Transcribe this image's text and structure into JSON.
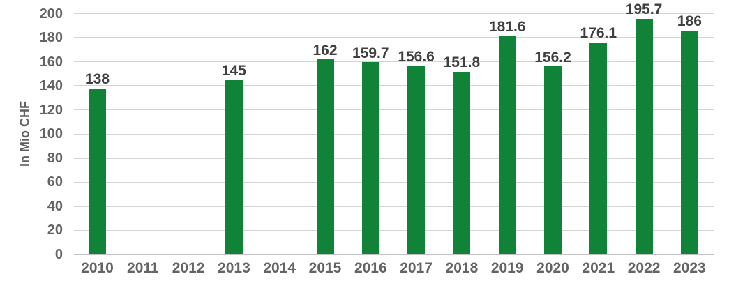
{
  "colors": {
    "bar": "#108338",
    "gridline": "#d4d4d4",
    "axis_line": "#c2c2c2",
    "tick_text": "#646464",
    "data_label_text": "#3f3f3f",
    "background": "#ffffff"
  },
  "chart_data": {
    "type": "bar",
    "title": "",
    "xlabel": "",
    "ylabel": "In Mio CHF",
    "categories": [
      "2010",
      "2011",
      "2012",
      "2013",
      "2014",
      "2015",
      "2016",
      "2017",
      "2018",
      "2019",
      "2020",
      "2021",
      "2022",
      "2023"
    ],
    "values": [
      138,
      null,
      null,
      145,
      null,
      162,
      159.7,
      156.6,
      151.8,
      181.6,
      156.2,
      176.1,
      195.7,
      186
    ],
    "data_labels": [
      "138",
      null,
      null,
      "145",
      null,
      "162",
      "159.7",
      "156.6",
      "151.8",
      "181.6",
      "156.2",
      "176.1",
      "195.7",
      "186"
    ],
    "ylim": [
      0,
      200
    ],
    "ytick_step": 20,
    "ytick_labels": [
      "0",
      "20",
      "40",
      "60",
      "80",
      "100",
      "120",
      "140",
      "160",
      "180",
      "200"
    ],
    "grid": true,
    "legend_position": "none",
    "bar_color": "#108338"
  }
}
